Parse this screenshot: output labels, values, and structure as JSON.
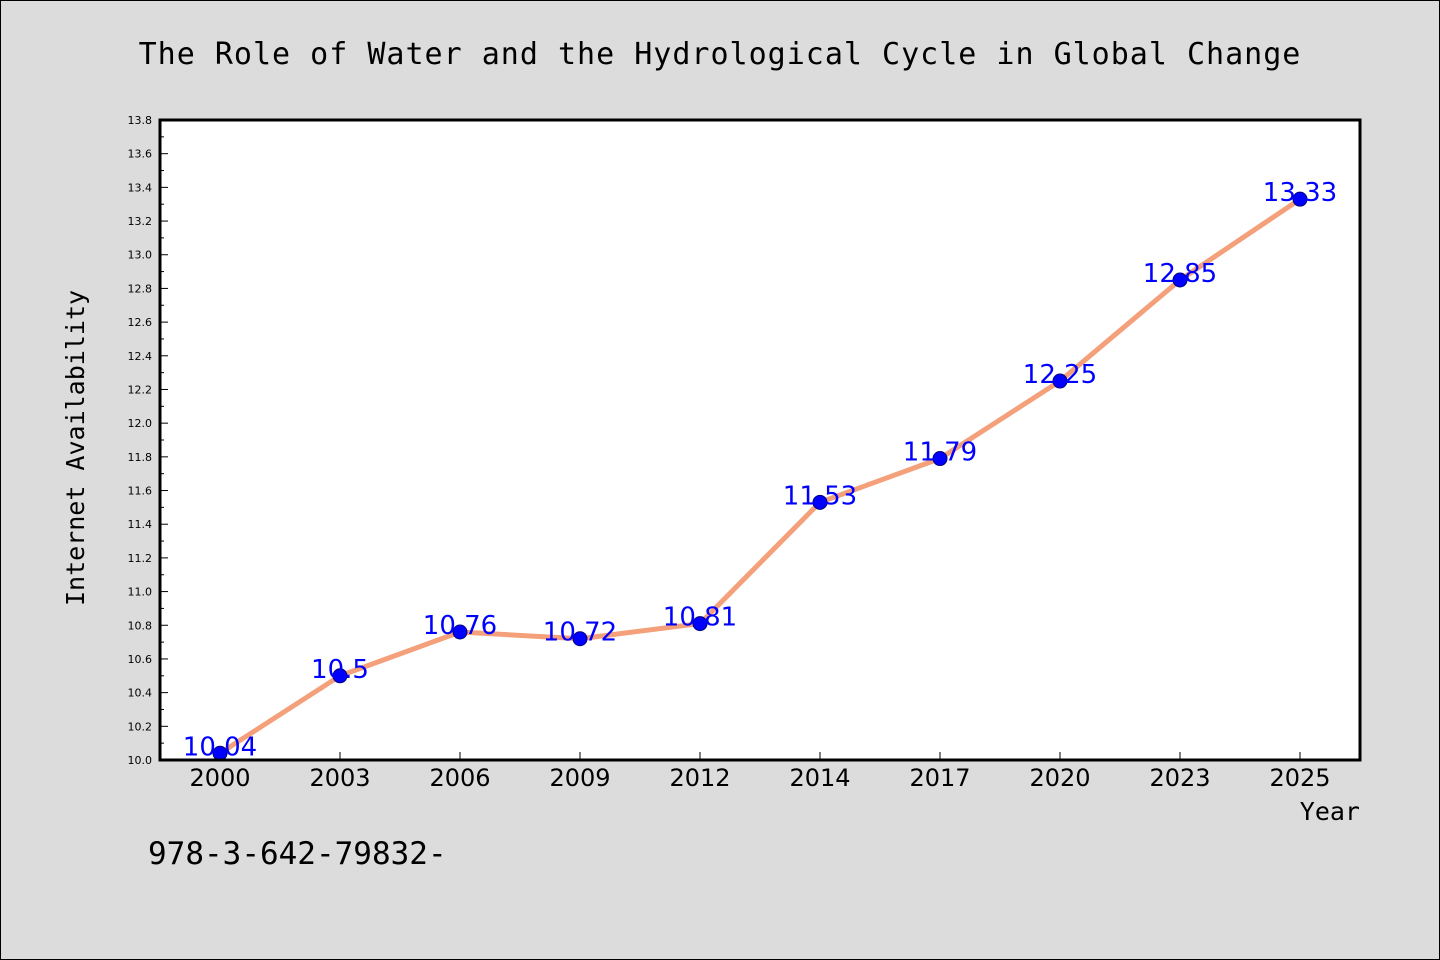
{
  "chart_data": {
    "type": "line",
    "title": "The Role of Water and the Hydrological Cycle in Global Change",
    "xlabel": "Year",
    "ylabel": "Internet Availability",
    "categories": [
      "2000",
      "2003",
      "2006",
      "2009",
      "2012",
      "2014",
      "2017",
      "2020",
      "2023",
      "2025"
    ],
    "series": [
      {
        "values": [
          10.04,
          10.5,
          10.76,
          10.72,
          10.81,
          11.53,
          11.79,
          12.25,
          12.85,
          13.33
        ],
        "labels": [
          "10.04",
          "10.5",
          "10.76",
          "10.72",
          "10.81",
          "11.53",
          "11.79",
          "12.25",
          "12.85",
          "13.33"
        ]
      }
    ],
    "ylim": [
      10.0,
      13.8
    ],
    "yticks": [
      "10.0",
      "10.2",
      "10.4",
      "10.6",
      "10.8",
      "11.0",
      "11.2",
      "11.4",
      "11.6",
      "11.8",
      "12.0",
      "12.2",
      "12.4",
      "12.6",
      "12.8",
      "13.0",
      "13.2",
      "13.4",
      "13.6",
      "13.8"
    ],
    "grid": false,
    "colors": {
      "line": "#f4a07a",
      "marker": "#0000ff",
      "data_label": "#0000ff",
      "background": "#dcdcdc",
      "plot_background": "#ffffff"
    }
  },
  "footnote": "978-3-642-79832-"
}
